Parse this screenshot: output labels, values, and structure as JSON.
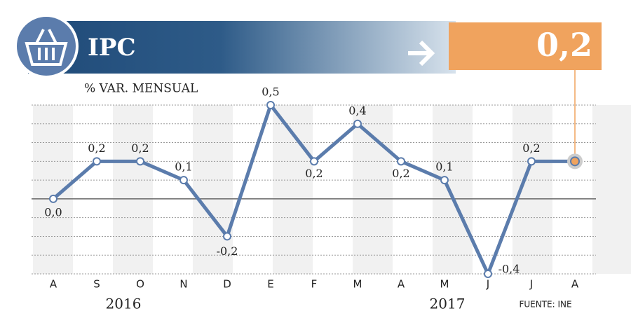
{
  "chart_data": {
    "type": "line",
    "title": "IPC",
    "subtitle": "% VAR. MENSUAL",
    "headline": "0,2",
    "categories": [
      "A",
      "S",
      "O",
      "N",
      "D",
      "E",
      "F",
      "M",
      "A",
      "M",
      "J",
      "J",
      "A"
    ],
    "values": [
      0.0,
      0.2,
      0.2,
      0.1,
      -0.2,
      0.5,
      0.2,
      0.4,
      0.2,
      0.1,
      -0.4,
      0.2,
      0.2
    ],
    "value_labels": [
      "0,0",
      "0,2",
      "0,2",
      "0,1",
      "-0,2",
      "0,5",
      "0,2",
      "0,4",
      "0,2",
      "0,1",
      "-0,4",
      "0,2",
      "0,2"
    ],
    "color": "#5b7cac",
    "highlight_color": "#f0a35e",
    "ylim": [
      -0.4,
      0.5
    ],
    "yticks": [
      -0.4,
      -0.3,
      -0.2,
      -0.1,
      0,
      0.1,
      0.2,
      0.3,
      0.4,
      0.5
    ],
    "grid": true,
    "years": [
      "2016",
      "2017"
    ],
    "source": "FUENTE: INE"
  }
}
